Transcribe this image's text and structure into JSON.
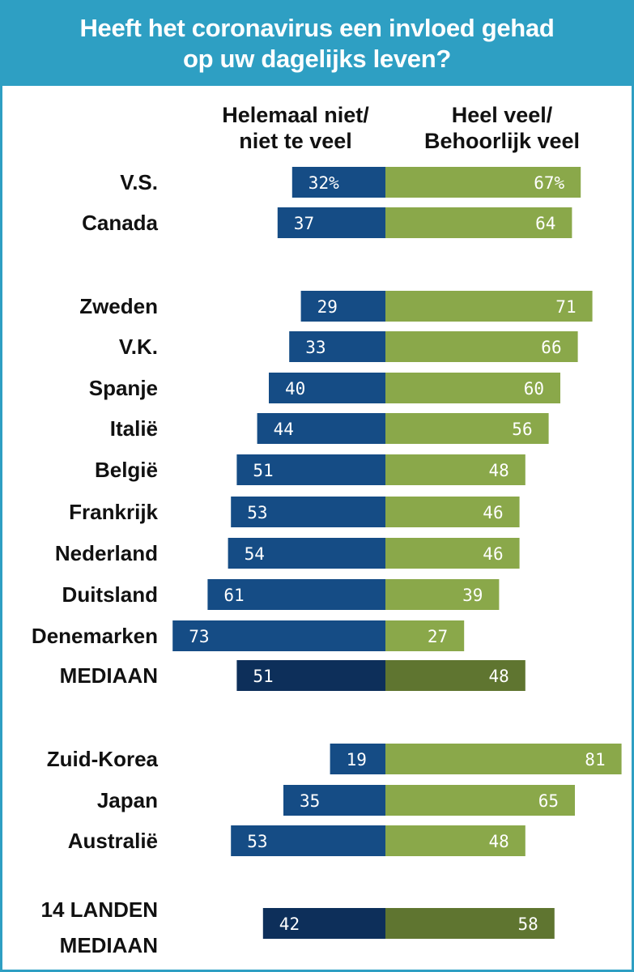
{
  "title_lines": [
    "Heeft het coronavirus een invloed gehad",
    "op uw dagelijks leven?"
  ],
  "colors": {
    "header_bg": "#2e9fc3",
    "blue": "#154c85",
    "green": "#8aa84a",
    "blue_median": "#0d2f5a",
    "green_median": "#5f7530"
  },
  "chart_data": {
    "type": "bar",
    "orientation": "horizontal-diverging",
    "title": "Heeft het coronavirus een invloed gehad op uw dagelijks leven?",
    "column_headers": {
      "left": [
        "Helemaal niet/",
        "niet te veel"
      ],
      "right": [
        "Heel veel/",
        "Behoorlijk veel"
      ]
    },
    "series": [
      {
        "name": "Helemaal niet/niet te veel",
        "side": "left"
      },
      {
        "name": "Heel veel/Behoorlijk veel",
        "side": "right"
      }
    ],
    "rows": [
      {
        "label": [
          "V.S."
        ],
        "left": 32,
        "right": 67,
        "left_label": "32%",
        "right_label": "67%",
        "median": false,
        "group": 0
      },
      {
        "label": [
          "Canada"
        ],
        "left": 37,
        "right": 64,
        "left_label": "37",
        "right_label": "64",
        "median": false,
        "group": 0
      },
      {
        "label": [
          "Zweden"
        ],
        "left": 29,
        "right": 71,
        "left_label": "29",
        "right_label": "71",
        "median": false,
        "group": 1
      },
      {
        "label": [
          "V.K."
        ],
        "left": 33,
        "right": 66,
        "left_label": "33",
        "right_label": "66",
        "median": false,
        "group": 1
      },
      {
        "label": [
          "Spanje"
        ],
        "left": 40,
        "right": 60,
        "left_label": "40",
        "right_label": "60",
        "median": false,
        "group": 1
      },
      {
        "label": [
          "Italië"
        ],
        "left": 44,
        "right": 56,
        "left_label": "44",
        "right_label": "56",
        "median": false,
        "group": 1
      },
      {
        "label": [
          "België"
        ],
        "left": 51,
        "right": 48,
        "left_label": "51",
        "right_label": "48",
        "median": false,
        "group": 1
      },
      {
        "label": [
          "Frankrijk"
        ],
        "left": 53,
        "right": 46,
        "left_label": "53",
        "right_label": "46",
        "median": false,
        "group": 1
      },
      {
        "label": [
          "Nederland"
        ],
        "left": 54,
        "right": 46,
        "left_label": "54",
        "right_label": "46",
        "median": false,
        "group": 1
      },
      {
        "label": [
          "Duitsland"
        ],
        "left": 61,
        "right": 39,
        "left_label": "61",
        "right_label": "39",
        "median": false,
        "group": 1
      },
      {
        "label": [
          "Denemarken"
        ],
        "left": 73,
        "right": 27,
        "left_label": "73",
        "right_label": "27",
        "median": false,
        "group": 1
      },
      {
        "label": [
          "MEDIAAN"
        ],
        "left": 51,
        "right": 48,
        "left_label": "51",
        "right_label": "48",
        "median": true,
        "group": 1
      },
      {
        "label": [
          "Zuid-Korea"
        ],
        "left": 19,
        "right": 81,
        "left_label": "19",
        "right_label": "81",
        "median": false,
        "group": 2
      },
      {
        "label": [
          "Japan"
        ],
        "left": 35,
        "right": 65,
        "left_label": "35",
        "right_label": "65",
        "median": false,
        "group": 2
      },
      {
        "label": [
          "Australië"
        ],
        "left": 53,
        "right": 48,
        "left_label": "53",
        "right_label": "48",
        "median": false,
        "group": 2
      },
      {
        "label": [
          "14 LANDEN",
          "MEDIAAN"
        ],
        "left": 42,
        "right": 58,
        "left_label": "42",
        "right_label": "58",
        "median": true,
        "group": 3
      }
    ]
  }
}
